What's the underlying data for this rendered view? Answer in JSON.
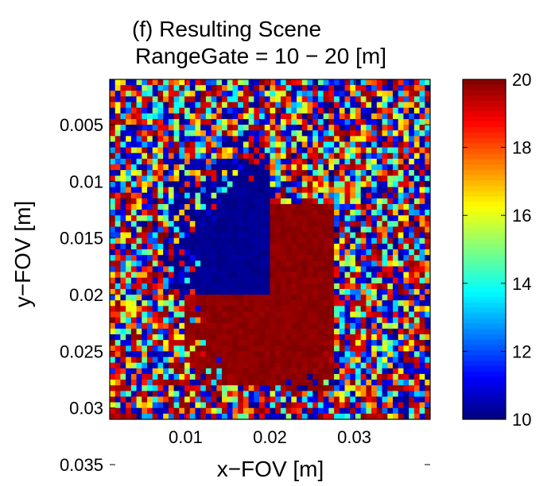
{
  "chart_data": {
    "type": "heatmap",
    "title": "(f) Resulting Scene",
    "subtitle": "RangeGate = 10 − 20 [m]",
    "xlabel": "x−FOV [m]",
    "ylabel": "y−FOV [m]",
    "xlim": [
      0.001,
      0.039
    ],
    "ylim": [
      0.031,
      0.001
    ],
    "x_ticks": [
      0.01,
      0.02,
      0.03
    ],
    "x_tick_labels": [
      "0.01",
      "0.02",
      "0.03"
    ],
    "y_ticks": [
      0.005,
      0.01,
      0.015,
      0.02,
      0.025,
      0.03,
      0.035
    ],
    "y_tick_labels": [
      "0.005",
      "0.01",
      "0.015",
      "0.02",
      "0.025",
      "0.03",
      "0.035"
    ],
    "colorbar": {
      "min": 10,
      "max": 20,
      "ticks": [
        10,
        12,
        14,
        16,
        18,
        20
      ],
      "tick_labels": [
        "10",
        "12",
        "14",
        "16",
        "18",
        "20"
      ],
      "colormap": "jet"
    },
    "grid_cells": 60,
    "regions": [
      {
        "name": "background noise",
        "value": "random 10–20",
        "fill_fraction": "random"
      },
      {
        "name": "upper-left block",
        "value": 10,
        "x_range": [
          0.008,
          0.02
        ],
        "y_range": [
          0.008,
          0.02
        ]
      },
      {
        "name": "lower-right block",
        "value": 20,
        "x_range": [
          0.02,
          0.027
        ],
        "y_range": [
          0.012,
          0.028
        ]
      }
    ]
  }
}
